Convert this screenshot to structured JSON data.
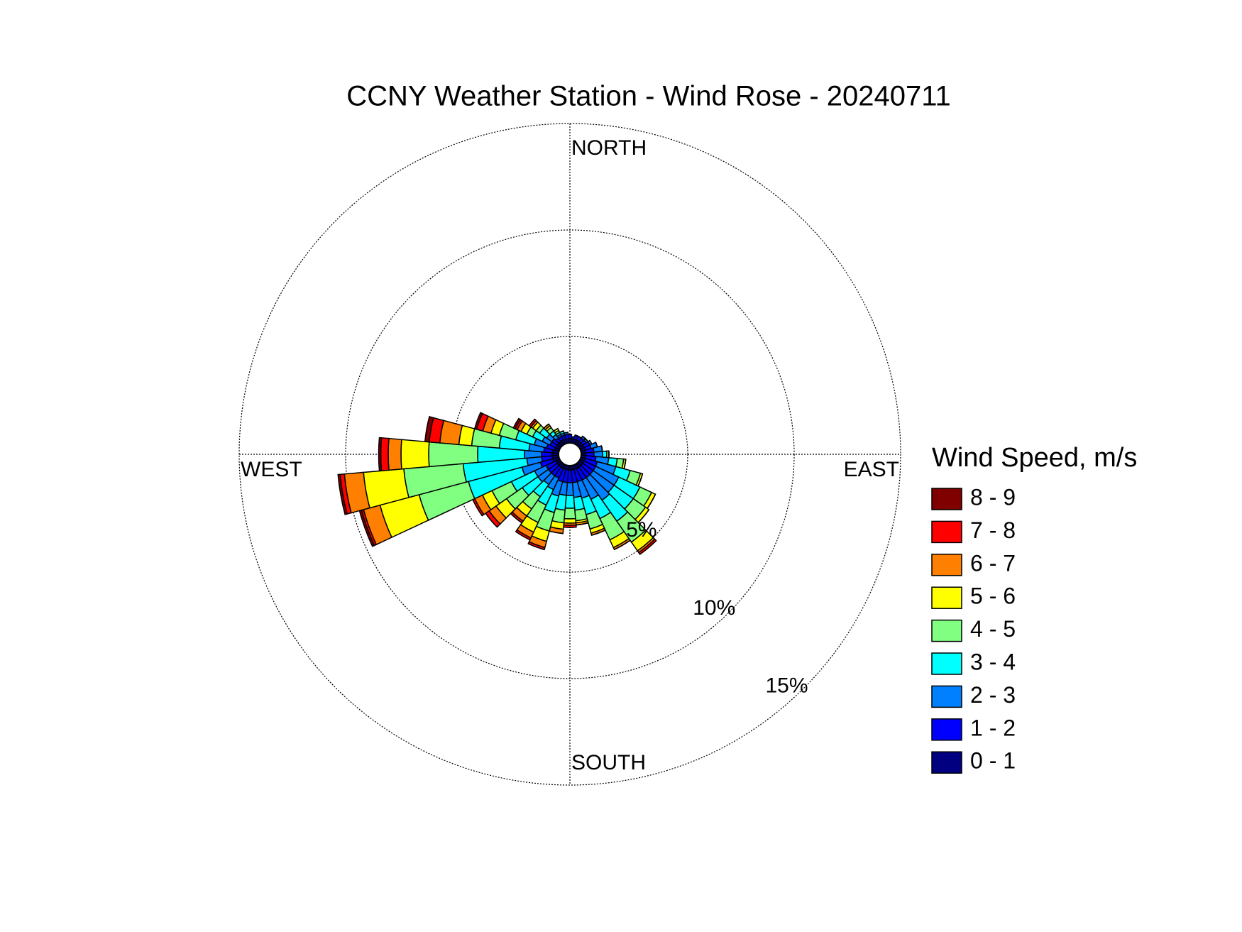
{
  "chart_data": {
    "type": "windrose",
    "title": "CCNY Weather Station - Wind Rose - 20240711",
    "direction_labels": [
      "NORTH",
      "EAST",
      "SOUTH",
      "WEST"
    ],
    "legend_title": "Wind Speed, m/s",
    "x": [
      0,
      10,
      20,
      30,
      40,
      50,
      60,
      70,
      80,
      90,
      100,
      110,
      120,
      130,
      140,
      150,
      160,
      170,
      180,
      190,
      200,
      210,
      220,
      230,
      240,
      250,
      260,
      270,
      280,
      290,
      300,
      310,
      320,
      330,
      340,
      350
    ],
    "rlim": [
      0,
      15
    ],
    "rticks": [
      {
        "value": 5,
        "label": "5%"
      },
      {
        "value": 10,
        "label": "10%"
      },
      {
        "value": 15,
        "label": "15%"
      }
    ],
    "grid": true,
    "series": [
      {
        "name": "0 - 1",
        "color": "#000080",
        "values": [
          0.2,
          0.2,
          0.2,
          0.2,
          0.2,
          0.2,
          0.2,
          0.2,
          0.2,
          0.2,
          0.2,
          0.2,
          0.2,
          0.2,
          0.2,
          0.2,
          0.2,
          0.2,
          0.2,
          0.2,
          0.2,
          0.2,
          0.2,
          0.2,
          0.2,
          0.3,
          0.3,
          0.3,
          0.3,
          0.2,
          0.2,
          0.2,
          0.2,
          0.2,
          0.2,
          0.2
        ]
      },
      {
        "name": "1 - 2",
        "color": "#0000ff",
        "values": [
          0.2,
          0.1,
          0.2,
          0.2,
          0.2,
          0.2,
          0.3,
          0.3,
          0.4,
          0.4,
          0.5,
          0.6,
          0.6,
          0.6,
          0.6,
          0.6,
          0.6,
          0.6,
          0.6,
          0.6,
          0.6,
          0.5,
          0.5,
          0.5,
          0.5,
          0.6,
          0.5,
          0.5,
          0.4,
          0.4,
          0.3,
          0.3,
          0.2,
          0.2,
          0.2,
          0.2
        ]
      },
      {
        "name": "2 - 3",
        "color": "#0080ff",
        "values": [
          0,
          0,
          0,
          0,
          0.1,
          0.1,
          0.1,
          0.3,
          0.4,
          0.4,
          0.6,
          0.9,
          1.2,
          1.2,
          1.3,
          1.0,
          0.8,
          0.7,
          0.6,
          0.6,
          0.7,
          0.6,
          0.5,
          0.6,
          0.6,
          0.9,
          0.7,
          0.8,
          0.7,
          0.6,
          0.4,
          0.3,
          0.2,
          0.1,
          0.1,
          0.1
        ]
      },
      {
        "name": "3 - 4",
        "color": "#00ffff",
        "values": [
          0,
          0,
          0,
          0,
          0,
          0,
          0,
          0,
          0,
          0.2,
          0.4,
          0.7,
          1.1,
          1.1,
          1.2,
          1.0,
          0.8,
          0.6,
          0.6,
          0.7,
          0.8,
          0.8,
          0.7,
          0.9,
          1.2,
          2.6,
          3.0,
          2.2,
          1.4,
          0.9,
          0.5,
          0.4,
          0.2,
          0.1,
          0.1,
          0
        ]
      },
      {
        "name": "4 - 5",
        "color": "#80ff80",
        "values": [
          0,
          0,
          0,
          0,
          0,
          0,
          0,
          0,
          0,
          0.1,
          0.3,
          0.5,
          0.6,
          0.7,
          1.2,
          1.1,
          0.7,
          0.5,
          0.5,
          0.6,
          0.9,
          0.9,
          0.7,
          0.9,
          1.0,
          2.4,
          2.8,
          2.3,
          1.3,
          0.8,
          0.3,
          0.2,
          0.2,
          0.1,
          0,
          0
        ]
      },
      {
        "name": "5 - 6",
        "color": "#ffff00",
        "values": [
          0,
          0,
          0,
          0,
          0,
          0,
          0,
          0,
          0,
          0,
          0.1,
          0.1,
          0.2,
          0.2,
          0.5,
          0.4,
          0.2,
          0.1,
          0.2,
          0.3,
          0.5,
          0.5,
          0.4,
          0.6,
          0.5,
          1.9,
          1.9,
          1.3,
          0.6,
          0.4,
          0.3,
          0.2,
          0.1,
          0.1,
          0,
          0
        ]
      },
      {
        "name": "6 - 7",
        "color": "#ff8000",
        "values": [
          0,
          0,
          0,
          0,
          0,
          0,
          0,
          0,
          0,
          0,
          0,
          0,
          0,
          0,
          0.1,
          0.1,
          0.1,
          0.1,
          0.1,
          0.2,
          0.3,
          0.3,
          0.3,
          0.4,
          0.4,
          0.8,
          0.9,
          0.6,
          0.9,
          0.4,
          0.2,
          0.1,
          0.1,
          0,
          0,
          0
        ]
      },
      {
        "name": "7 - 8",
        "color": "#ff0000",
        "values": [
          0,
          0,
          0,
          0,
          0,
          0,
          0,
          0,
          0,
          0,
          0,
          0,
          0,
          0,
          0.1,
          0,
          0,
          0,
          0.1,
          0,
          0.1,
          0.1,
          0.1,
          0.2,
          0.1,
          0.1,
          0.2,
          0.35,
          0.5,
          0.3,
          0.1,
          0.1,
          0,
          0,
          0,
          0
        ]
      },
      {
        "name": "8 - 9",
        "color": "#800000",
        "values": [
          0,
          0,
          0,
          0,
          0,
          0,
          0,
          0,
          0,
          0,
          0,
          0,
          0,
          0,
          0,
          0,
          0,
          0,
          0,
          0,
          0,
          0,
          0,
          0,
          0,
          0.1,
          0.1,
          0.1,
          0.2,
          0.1,
          0.1,
          0,
          0,
          0,
          0,
          0
        ]
      }
    ]
  }
}
